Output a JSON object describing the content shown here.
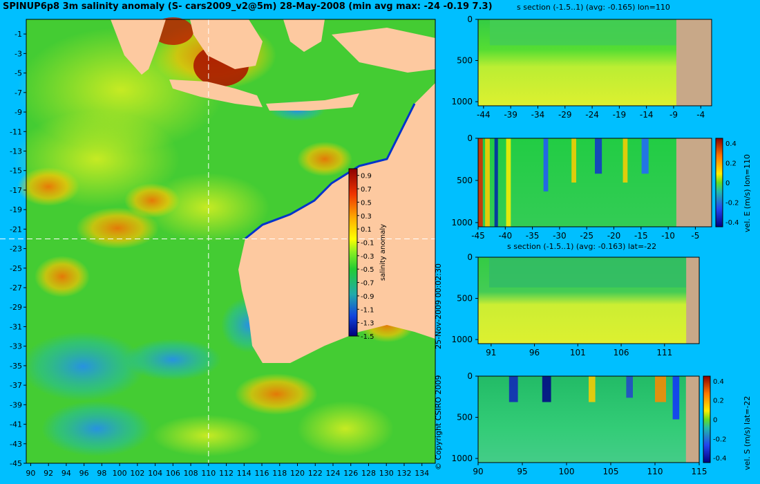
{
  "title": "SPINUP6p8 3m salinity anomaly (S- cars2009_v2@5m) 28-May-2008 (min avg max: -24 -0.19 7.3)",
  "copyright": "© Copyright CSIRO 2009",
  "timestamp": "25-Nov-2009 00:02:30",
  "colors": {
    "background": "#00bfff",
    "land": "#fdc9a0",
    "section_land": "#c8a888",
    "ocean_base": "#44cc33"
  },
  "chart_data": [
    {
      "type": "heatmap",
      "name": "main_map",
      "x_ticks": [
        "90",
        "92",
        "94",
        "96",
        "98",
        "100",
        "102",
        "104",
        "106",
        "108",
        "110",
        "112",
        "114",
        "116",
        "118",
        "120",
        "122",
        "124",
        "126",
        "128",
        "130",
        "132",
        "134"
      ],
      "y_ticks": [
        "-1",
        "-3",
        "-5",
        "-7",
        "-9",
        "-11",
        "-13",
        "-15",
        "-17",
        "-19",
        "-21",
        "-23",
        "-25",
        "-27",
        "-29",
        "-31",
        "-33",
        "-35",
        "-37",
        "-39",
        "-41",
        "-43",
        "-45"
      ],
      "xlim": [
        89.5,
        135.5
      ],
      "ylim": [
        -45,
        0.5
      ],
      "crosshair": {
        "lon": 110,
        "lat": -22
      },
      "colorbar": {
        "label": "salinity anomaly",
        "ticks": [
          "0.9",
          "0.7",
          "0.5",
          "0.3",
          "0.1",
          "-0.1",
          "-0.3",
          "-0.5",
          "-0.7",
          "-0.9",
          "-1.1",
          "-1.3",
          "-1.5"
        ],
        "range": [
          -1.5,
          1.0
        ]
      }
    },
    {
      "type": "heatmap",
      "name": "s_section_lon110",
      "title": "s section (-1.5..1) (avg: -0.165) lon=110",
      "x_ticks": [
        "-44",
        "-39",
        "-34",
        "-29",
        "-24",
        "-19",
        "-14",
        "-9",
        "-4"
      ],
      "y_ticks": [
        "0",
        "500",
        "1000"
      ],
      "xlim": [
        -45,
        -2
      ],
      "ylim": [
        0,
        1050
      ],
      "land_from": -8.5
    },
    {
      "type": "heatmap",
      "name": "vel_e_lon110",
      "title": "",
      "x_ticks": [
        "-45",
        "-40",
        "-35",
        "-30",
        "-25",
        "-20",
        "-15",
        "-10",
        "-5"
      ],
      "y_ticks": [
        "0",
        "500",
        "1000"
      ],
      "xlim": [
        -45,
        -2
      ],
      "ylim": [
        0,
        1050
      ],
      "land_from": -8.5,
      "colorbar": {
        "label": "vel. E (m/s) lon=110",
        "ticks": [
          "0.4",
          "0.2",
          "0",
          "-0.2",
          "-0.4"
        ],
        "range": [
          -0.45,
          0.45
        ]
      }
    },
    {
      "type": "heatmap",
      "name": "s_section_lat22",
      "title": "s section (-1.5..1) (avg: -0.163) lat=-22",
      "x_ticks": [
        "91",
        "96",
        "101",
        "106",
        "111"
      ],
      "y_ticks": [
        "0",
        "500",
        "1000"
      ],
      "xlim": [
        89.5,
        115
      ],
      "ylim": [
        0,
        1050
      ],
      "land_from": 113.5
    },
    {
      "type": "heatmap",
      "name": "vel_s_lat22",
      "title": "",
      "x_ticks": [
        "90",
        "95",
        "100",
        "105",
        "110",
        "115"
      ],
      "y_ticks": [
        "0",
        "500",
        "1000"
      ],
      "xlim": [
        90,
        115
      ],
      "ylim": [
        0,
        1050
      ],
      "land_from": 113.5,
      "colorbar": {
        "label": "vel. S (m/s) lat=-22",
        "ticks": [
          "0.4",
          "0.2",
          "0",
          "-0.2",
          "-0.4"
        ],
        "range": [
          -0.45,
          0.45
        ]
      }
    }
  ]
}
